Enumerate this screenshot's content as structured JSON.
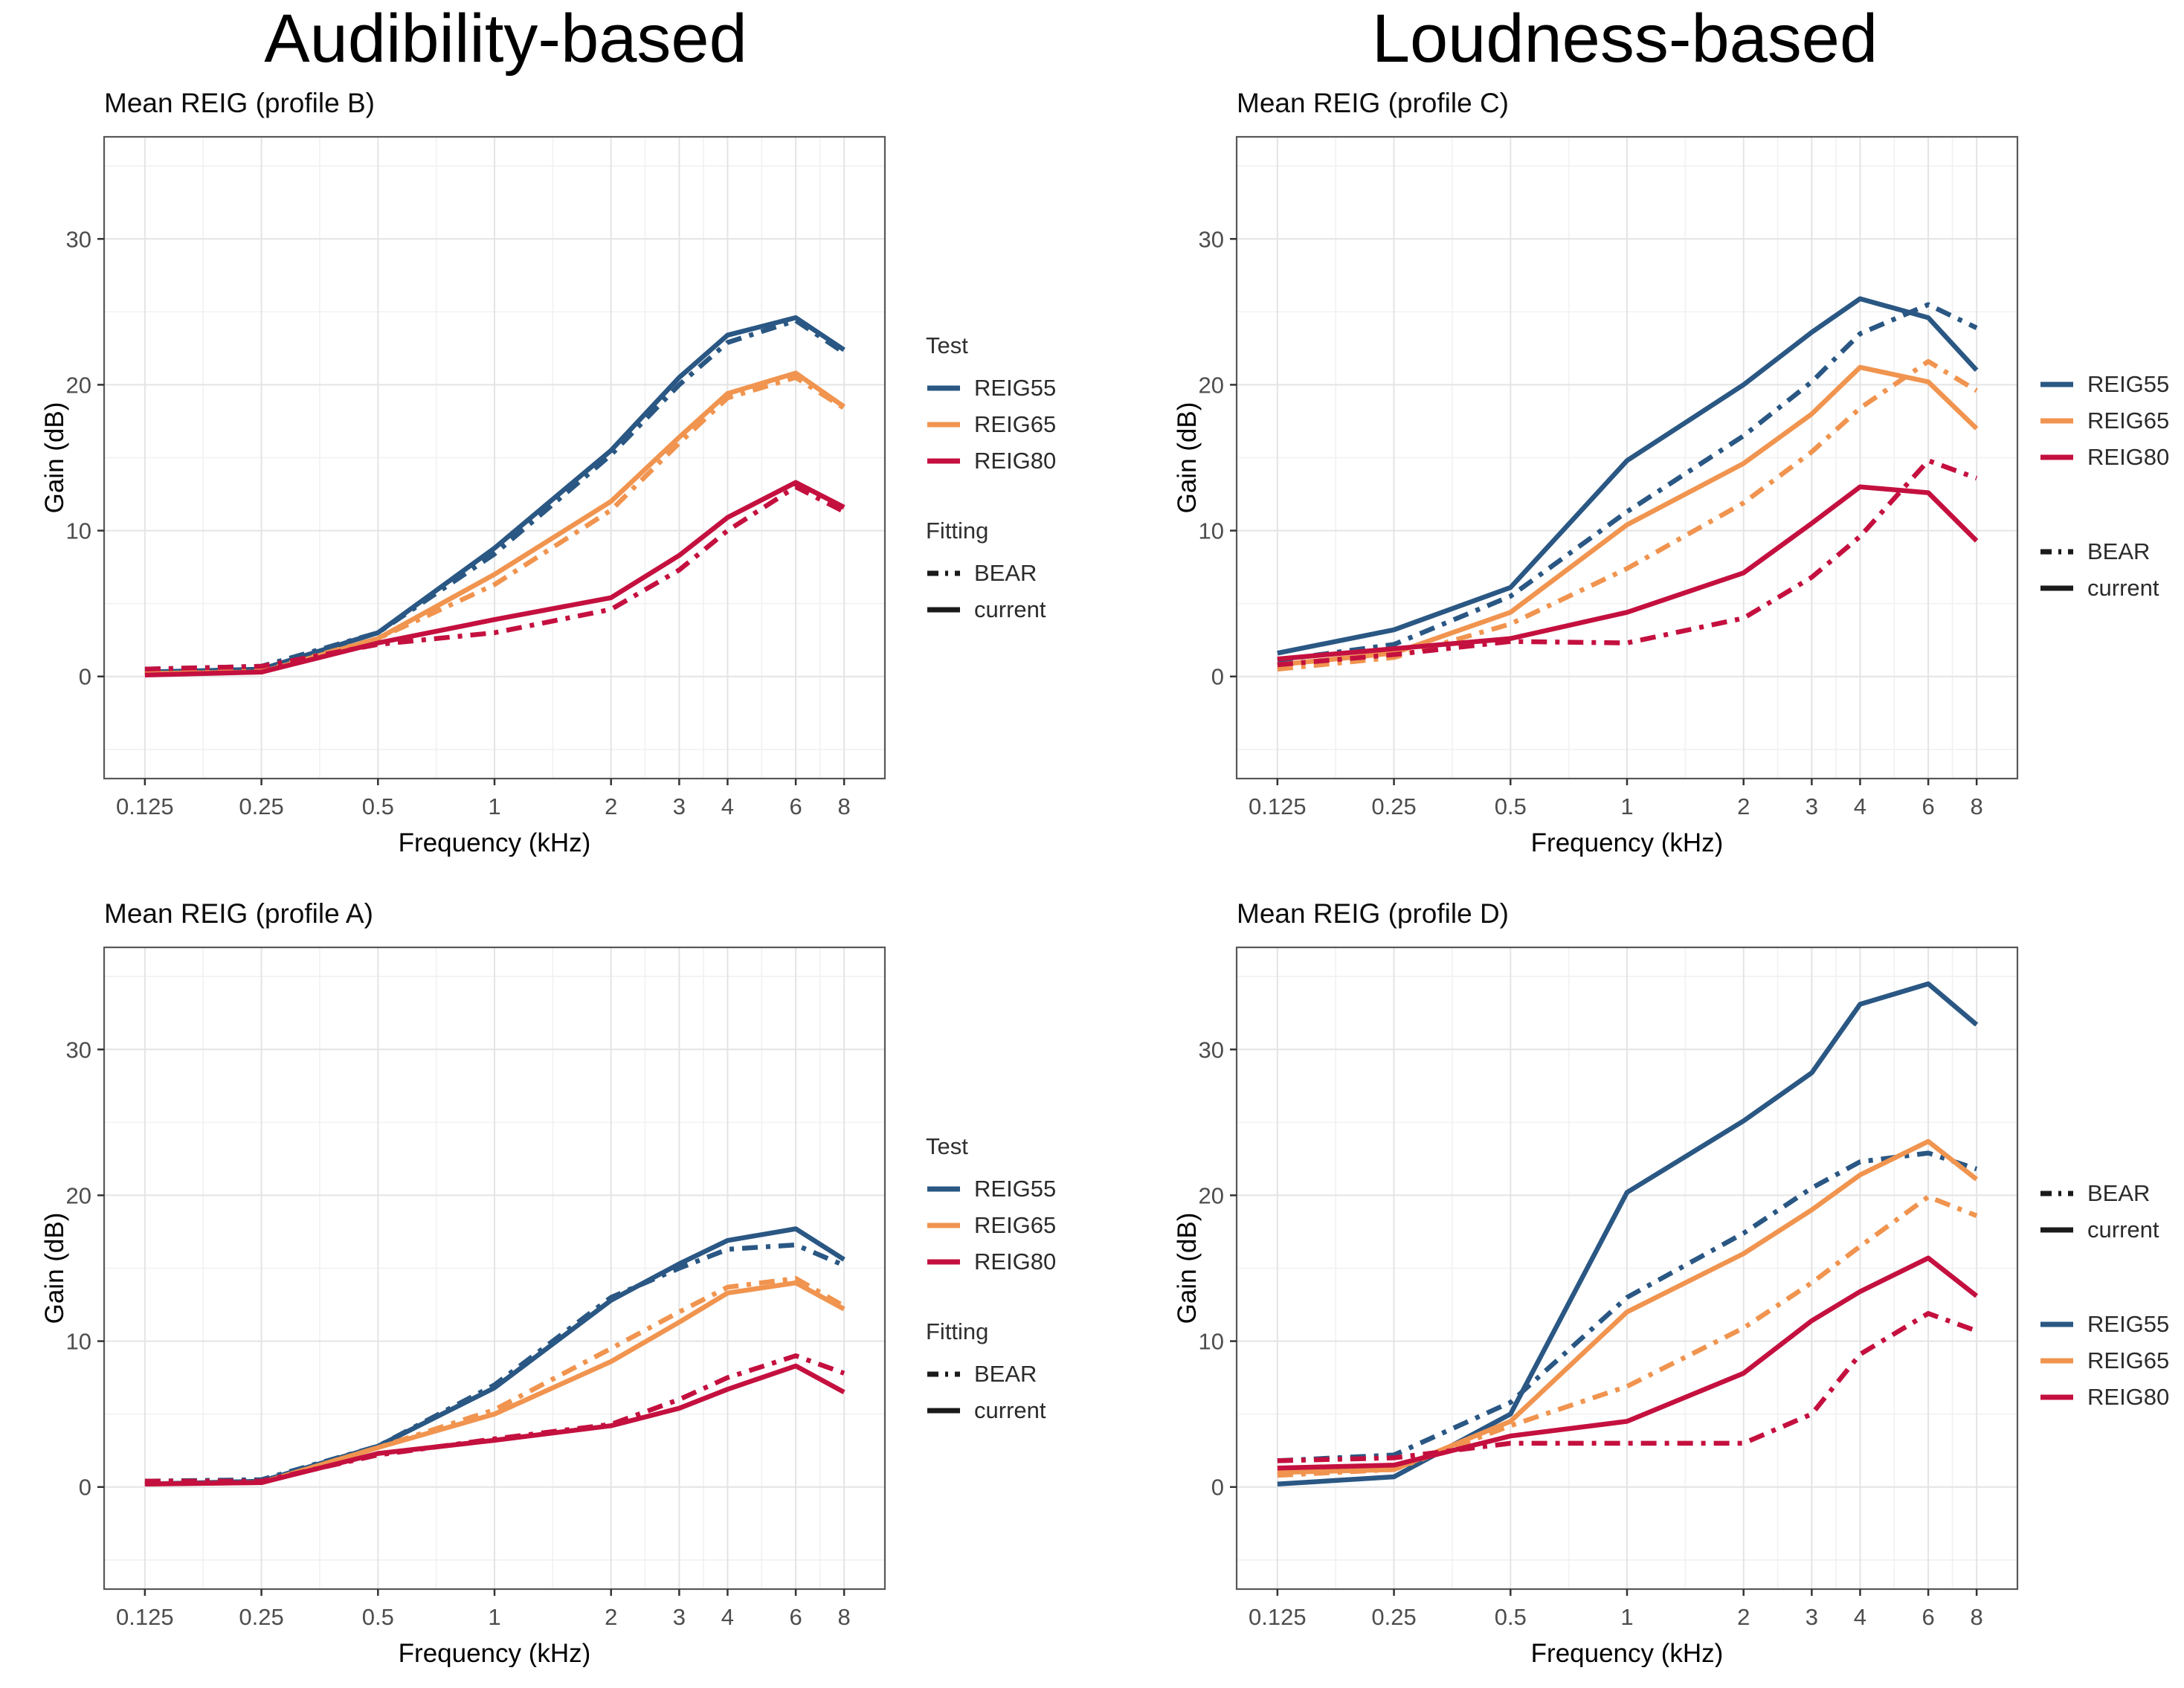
{
  "page": {
    "column_headers": [
      {
        "label": "Audibility-based"
      },
      {
        "label": "Loudness-based"
      }
    ]
  },
  "palette": {
    "REIG55": "#2A5783",
    "REIG65": "#F0944F",
    "REIG80": "#C4103F",
    "fitting": "#1A1A1A",
    "grid_major": "#E4E4E4",
    "grid_minor": "#F1F1F1",
    "panel_border": "#58585A",
    "tick_mark": "#333333",
    "tick_label": "#4D4D4D",
    "axis_title": "#000000"
  },
  "chart_data": [
    {
      "type": "line",
      "title": "Mean REIG (profile B)",
      "xlabel": "Frequency (kHz)",
      "ylabel": "Gain (dB)",
      "x_scale": "log2",
      "x": [
        0.125,
        0.25,
        0.5,
        1,
        2,
        3,
        4,
        6,
        8
      ],
      "x_tick_labels": [
        "0.125",
        "0.25",
        "0.5",
        "1",
        "2",
        "3",
        "4",
        "6",
        "8"
      ],
      "xlim_log2": [
        -3.35,
        3.35
      ],
      "ylim": [
        -7,
        37
      ],
      "y_ticks": [
        0,
        10,
        20,
        30
      ],
      "grid": true,
      "legend_position": "right",
      "series": [
        {
          "name": "REIG55 BEAR",
          "test": "REIG55",
          "fitting": "BEAR",
          "values": [
            0.5,
            0.7,
            3.0,
            8.4,
            15.2,
            20.0,
            22.9,
            24.4,
            22.2
          ]
        },
        {
          "name": "REIG55 current",
          "test": "REIG55",
          "fitting": "current",
          "values": [
            0.3,
            0.5,
            3.0,
            8.8,
            15.5,
            20.5,
            23.4,
            24.6,
            22.4
          ]
        },
        {
          "name": "REIG65 BEAR",
          "test": "REIG65",
          "fitting": "BEAR",
          "values": [
            0.3,
            0.4,
            2.6,
            6.3,
            11.4,
            16.0,
            19.1,
            20.5,
            18.4
          ]
        },
        {
          "name": "REIG65 current",
          "test": "REIG65",
          "fitting": "current",
          "values": [
            0.2,
            0.3,
            2.6,
            7.0,
            12.0,
            16.4,
            19.4,
            20.8,
            18.5
          ]
        },
        {
          "name": "REIG80 BEAR",
          "test": "REIG80",
          "fitting": "BEAR",
          "values": [
            0.5,
            0.7,
            2.2,
            3.0,
            4.6,
            7.3,
            10.0,
            13.0,
            11.3
          ]
        },
        {
          "name": "REIG80 current",
          "test": "REIG80",
          "fitting": "current",
          "values": [
            0.1,
            0.3,
            2.3,
            3.9,
            5.4,
            8.3,
            10.9,
            13.3,
            11.6
          ]
        }
      ],
      "legend": {
        "groups": [
          {
            "header": "Test",
            "items": [
              {
                "label": "REIG55",
                "color_key": "REIG55",
                "dash": false
              },
              {
                "label": "REIG65",
                "color_key": "REIG65",
                "dash": false
              },
              {
                "label": "REIG80",
                "color_key": "REIG80",
                "dash": false
              }
            ]
          },
          {
            "header": "Fitting",
            "items": [
              {
                "label": "BEAR",
                "color_key": "fitting",
                "dash": true
              },
              {
                "label": "current",
                "color_key": "fitting",
                "dash": false
              }
            ]
          }
        ]
      }
    },
    {
      "type": "line",
      "title": "Mean REIG (profile C)",
      "xlabel": "Frequency (kHz)",
      "ylabel": "Gain (dB)",
      "x_scale": "log2",
      "x": [
        0.125,
        0.25,
        0.5,
        1,
        2,
        3,
        4,
        6,
        8
      ],
      "x_tick_labels": [
        "0.125",
        "0.25",
        "0.5",
        "1",
        "2",
        "3",
        "4",
        "6",
        "8"
      ],
      "xlim_log2": [
        -3.35,
        3.35
      ],
      "ylim": [
        -7,
        37
      ],
      "y_ticks": [
        0,
        10,
        20,
        30
      ],
      "grid": true,
      "legend_position": "right",
      "series": [
        {
          "name": "REIG55 BEAR",
          "test": "REIG55",
          "fitting": "BEAR",
          "values": [
            1.1,
            2.2,
            5.5,
            11.3,
            16.5,
            20.2,
            23.5,
            25.5,
            23.9
          ]
        },
        {
          "name": "REIG55 current",
          "test": "REIG55",
          "fitting": "current",
          "values": [
            1.6,
            3.2,
            6.1,
            14.8,
            20.0,
            23.6,
            25.9,
            24.6,
            21.0
          ]
        },
        {
          "name": "REIG65 BEAR",
          "test": "REIG65",
          "fitting": "BEAR",
          "values": [
            0.5,
            1.3,
            3.6,
            7.4,
            11.9,
            15.4,
            18.4,
            21.6,
            19.6
          ]
        },
        {
          "name": "REIG65 current",
          "test": "REIG65",
          "fitting": "current",
          "values": [
            0.8,
            1.6,
            4.4,
            10.4,
            14.6,
            18.0,
            21.2,
            20.2,
            17.0
          ]
        },
        {
          "name": "REIG80 BEAR",
          "test": "REIG80",
          "fitting": "BEAR",
          "values": [
            0.8,
            1.5,
            2.4,
            2.3,
            4.0,
            6.8,
            9.6,
            14.8,
            13.6
          ]
        },
        {
          "name": "REIG80 current",
          "test": "REIG80",
          "fitting": "current",
          "values": [
            1.2,
            1.9,
            2.6,
            4.4,
            7.1,
            10.5,
            13.0,
            12.6,
            9.3
          ]
        }
      ],
      "legend": {
        "groups": [
          {
            "header": null,
            "items": [
              {
                "label": "REIG55",
                "color_key": "REIG55",
                "dash": false
              },
              {
                "label": "REIG65",
                "color_key": "REIG65",
                "dash": false
              },
              {
                "label": "REIG80",
                "color_key": "REIG80",
                "dash": false
              }
            ]
          },
          {
            "header": null,
            "items": [
              {
                "label": "BEAR",
                "color_key": "fitting",
                "dash": true
              },
              {
                "label": "current",
                "color_key": "fitting",
                "dash": false
              }
            ]
          }
        ]
      }
    },
    {
      "type": "line",
      "title": "Mean REIG (profile A)",
      "xlabel": "Frequency (kHz)",
      "ylabel": "Gain (dB)",
      "x_scale": "log2",
      "x": [
        0.125,
        0.25,
        0.5,
        1,
        2,
        3,
        4,
        6,
        8
      ],
      "x_tick_labels": [
        "0.125",
        "0.25",
        "0.5",
        "1",
        "2",
        "3",
        "4",
        "6",
        "8"
      ],
      "xlim_log2": [
        -3.35,
        3.35
      ],
      "ylim": [
        -7,
        37
      ],
      "y_ticks": [
        0,
        10,
        20,
        30
      ],
      "grid": true,
      "legend_position": "right",
      "series": [
        {
          "name": "REIG55 BEAR",
          "test": "REIG55",
          "fitting": "BEAR",
          "values": [
            0.4,
            0.5,
            2.8,
            7.0,
            13.0,
            15.0,
            16.3,
            16.6,
            15.2
          ]
        },
        {
          "name": "REIG55 current",
          "test": "REIG55",
          "fitting": "current",
          "values": [
            0.2,
            0.4,
            2.8,
            6.8,
            12.8,
            15.3,
            16.9,
            17.7,
            15.6
          ]
        },
        {
          "name": "REIG65 BEAR",
          "test": "REIG65",
          "fitting": "BEAR",
          "values": [
            0.3,
            0.3,
            2.7,
            5.3,
            9.5,
            12.0,
            13.7,
            14.3,
            12.4
          ]
        },
        {
          "name": "REIG65 current",
          "test": "REIG65",
          "fitting": "current",
          "values": [
            0.2,
            0.3,
            2.7,
            5.0,
            8.6,
            11.3,
            13.3,
            14.0,
            12.2
          ]
        },
        {
          "name": "REIG80 BEAR",
          "test": "REIG80",
          "fitting": "BEAR",
          "values": [
            0.4,
            0.4,
            2.2,
            3.3,
            4.3,
            6.0,
            7.5,
            9.0,
            7.8
          ]
        },
        {
          "name": "REIG80 current",
          "test": "REIG80",
          "fitting": "current",
          "values": [
            0.2,
            0.3,
            2.3,
            3.2,
            4.2,
            5.4,
            6.7,
            8.3,
            6.5
          ]
        }
      ],
      "legend": {
        "groups": [
          {
            "header": "Test",
            "items": [
              {
                "label": "REIG55",
                "color_key": "REIG55",
                "dash": false
              },
              {
                "label": "REIG65",
                "color_key": "REIG65",
                "dash": false
              },
              {
                "label": "REIG80",
                "color_key": "REIG80",
                "dash": false
              }
            ]
          },
          {
            "header": "Fitting",
            "items": [
              {
                "label": "BEAR",
                "color_key": "fitting",
                "dash": true
              },
              {
                "label": "current",
                "color_key": "fitting",
                "dash": false
              }
            ]
          }
        ]
      }
    },
    {
      "type": "line",
      "title": "Mean REIG (profile D)",
      "xlabel": "Frequency (kHz)",
      "ylabel": "Gain (dB)",
      "x_scale": "log2",
      "x": [
        0.125,
        0.25,
        0.5,
        1,
        2,
        3,
        4,
        6,
        8
      ],
      "x_tick_labels": [
        "0.125",
        "0.25",
        "0.5",
        "1",
        "2",
        "3",
        "4",
        "6",
        "8"
      ],
      "xlim_log2": [
        -3.35,
        3.35
      ],
      "ylim": [
        -7,
        37
      ],
      "y_ticks": [
        0,
        10,
        20,
        30
      ],
      "grid": true,
      "legend_position": "right",
      "series": [
        {
          "name": "REIG55 BEAR",
          "test": "REIG55",
          "fitting": "BEAR",
          "values": [
            1.8,
            2.2,
            5.8,
            13.0,
            17.4,
            20.5,
            22.3,
            22.9,
            21.8
          ]
        },
        {
          "name": "REIG55 current",
          "test": "REIG55",
          "fitting": "current",
          "values": [
            0.2,
            0.7,
            5.0,
            20.2,
            25.1,
            28.4,
            33.1,
            34.5,
            31.7
          ]
        },
        {
          "name": "REIG65 BEAR",
          "test": "REIG65",
          "fitting": "BEAR",
          "values": [
            0.8,
            1.2,
            4.2,
            6.9,
            10.9,
            14.0,
            16.5,
            19.9,
            18.6
          ]
        },
        {
          "name": "REIG65 current",
          "test": "REIG65",
          "fitting": "current",
          "values": [
            1.0,
            1.2,
            4.5,
            12.0,
            16.0,
            19.0,
            21.4,
            23.7,
            21.1
          ]
        },
        {
          "name": "REIG80 BEAR",
          "test": "REIG80",
          "fitting": "BEAR",
          "values": [
            1.8,
            2.0,
            3.0,
            3.0,
            3.0,
            5.0,
            9.1,
            11.9,
            10.7
          ]
        },
        {
          "name": "REIG80 current",
          "test": "REIG80",
          "fitting": "current",
          "values": [
            1.3,
            1.5,
            3.5,
            4.5,
            7.8,
            11.4,
            13.4,
            15.7,
            13.1
          ]
        }
      ],
      "legend": {
        "groups": [
          {
            "header": null,
            "items": [
              {
                "label": "BEAR",
                "color_key": "fitting",
                "dash": true
              },
              {
                "label": "current",
                "color_key": "fitting",
                "dash": false
              }
            ]
          },
          {
            "header": null,
            "items": [
              {
                "label": "REIG55",
                "color_key": "REIG55",
                "dash": false
              },
              {
                "label": "REIG65",
                "color_key": "REIG65",
                "dash": false
              },
              {
                "label": "REIG80",
                "color_key": "REIG80",
                "dash": false
              }
            ]
          }
        ]
      }
    }
  ]
}
